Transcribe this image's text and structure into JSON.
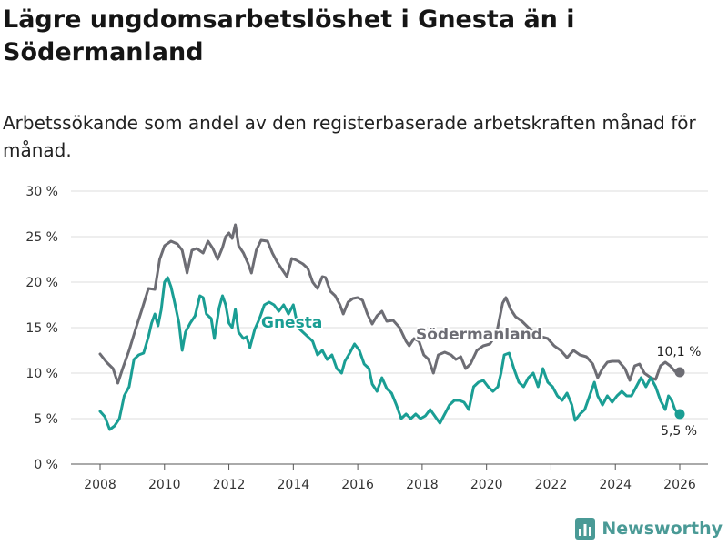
{
  "title": "Lägre ungdomsarbetslöshet i Gnesta än i Södermanland",
  "subtitle": "Arbetssökande som andel av den registerbaserade arbetskraften månad för månad.",
  "brand": "Newsworthy",
  "colors": {
    "gnesta": "#1a9e94",
    "sodermanland": "#6d6d74",
    "grid": "#dcdcdc",
    "axis": "#555555"
  },
  "chart_data": {
    "type": "line",
    "xlim": [
      2008,
      2026.4
    ],
    "ylim": [
      0,
      30
    ],
    "y_ticks": [
      0,
      5,
      10,
      15,
      20,
      25,
      30
    ],
    "y_tick_labels": [
      "0 %",
      "5 %",
      "10 %",
      "15 %",
      "20 %",
      "25 %",
      "30 %"
    ],
    "x_ticks": [
      2008,
      2010,
      2012,
      2014,
      2016,
      2018,
      2020,
      2022,
      2024,
      2026
    ],
    "x_tick_labels": [
      "2008",
      "2010",
      "2012",
      "2014",
      "2016",
      "2018",
      "2020",
      "2022",
      "2024",
      "2026"
    ],
    "series": [
      {
        "name": "Södermanland",
        "label": "Södermanland",
        "end_label": "10,1 %",
        "points": [
          [
            2008.0,
            12.1
          ],
          [
            2008.2,
            11.2
          ],
          [
            2008.4,
            10.5
          ],
          [
            2008.55,
            8.9
          ],
          [
            2008.7,
            10.5
          ],
          [
            2008.9,
            12.5
          ],
          [
            2009.1,
            14.8
          ],
          [
            2009.3,
            17.0
          ],
          [
            2009.5,
            19.3
          ],
          [
            2009.7,
            19.2
          ],
          [
            2009.85,
            22.5
          ],
          [
            2010.0,
            24.0
          ],
          [
            2010.2,
            24.5
          ],
          [
            2010.4,
            24.2
          ],
          [
            2010.55,
            23.5
          ],
          [
            2010.7,
            21.0
          ],
          [
            2010.85,
            23.5
          ],
          [
            2011.0,
            23.7
          ],
          [
            2011.2,
            23.2
          ],
          [
            2011.35,
            24.5
          ],
          [
            2011.5,
            23.7
          ],
          [
            2011.65,
            22.5
          ],
          [
            2011.8,
            23.8
          ],
          [
            2011.9,
            25.0
          ],
          [
            2012.0,
            25.4
          ],
          [
            2012.1,
            24.8
          ],
          [
            2012.2,
            26.3
          ],
          [
            2012.3,
            24.0
          ],
          [
            2012.45,
            23.2
          ],
          [
            2012.6,
            22.0
          ],
          [
            2012.7,
            21.0
          ],
          [
            2012.85,
            23.5
          ],
          [
            2013.0,
            24.6
          ],
          [
            2013.2,
            24.5
          ],
          [
            2013.35,
            23.2
          ],
          [
            2013.5,
            22.2
          ],
          [
            2013.65,
            21.4
          ],
          [
            2013.8,
            20.6
          ],
          [
            2013.95,
            22.6
          ],
          [
            2014.1,
            22.4
          ],
          [
            2014.3,
            22.0
          ],
          [
            2014.45,
            21.5
          ],
          [
            2014.6,
            20.0
          ],
          [
            2014.75,
            19.3
          ],
          [
            2014.9,
            20.6
          ],
          [
            2015.0,
            20.5
          ],
          [
            2015.15,
            19.0
          ],
          [
            2015.3,
            18.5
          ],
          [
            2015.45,
            17.5
          ],
          [
            2015.55,
            16.5
          ],
          [
            2015.7,
            17.8
          ],
          [
            2015.85,
            18.2
          ],
          [
            2016.0,
            18.3
          ],
          [
            2016.15,
            18.0
          ],
          [
            2016.3,
            16.5
          ],
          [
            2016.45,
            15.4
          ],
          [
            2016.6,
            16.3
          ],
          [
            2016.75,
            16.8
          ],
          [
            2016.9,
            15.7
          ],
          [
            2017.1,
            15.8
          ],
          [
            2017.3,
            15.0
          ],
          [
            2017.5,
            13.5
          ],
          [
            2017.6,
            13.0
          ],
          [
            2017.75,
            13.8
          ],
          [
            2017.9,
            13.5
          ],
          [
            2018.05,
            12.0
          ],
          [
            2018.2,
            11.5
          ],
          [
            2018.35,
            10.0
          ],
          [
            2018.5,
            12.0
          ],
          [
            2018.7,
            12.3
          ],
          [
            2018.9,
            12.0
          ],
          [
            2019.05,
            11.5
          ],
          [
            2019.2,
            11.8
          ],
          [
            2019.35,
            10.5
          ],
          [
            2019.5,
            11.0
          ],
          [
            2019.7,
            12.5
          ],
          [
            2019.9,
            13.0
          ],
          [
            2020.1,
            13.2
          ],
          [
            2020.3,
            14.2
          ],
          [
            2020.5,
            17.7
          ],
          [
            2020.6,
            18.3
          ],
          [
            2020.75,
            17.0
          ],
          [
            2020.9,
            16.2
          ],
          [
            2021.1,
            15.7
          ],
          [
            2021.3,
            15.0
          ],
          [
            2021.5,
            14.5
          ],
          [
            2021.7,
            14.0
          ],
          [
            2021.9,
            13.8
          ],
          [
            2022.1,
            13.0
          ],
          [
            2022.3,
            12.5
          ],
          [
            2022.5,
            11.7
          ],
          [
            2022.7,
            12.5
          ],
          [
            2022.9,
            12.0
          ],
          [
            2023.1,
            11.8
          ],
          [
            2023.3,
            11.0
          ],
          [
            2023.45,
            9.5
          ],
          [
            2023.6,
            10.5
          ],
          [
            2023.75,
            11.2
          ],
          [
            2023.9,
            11.3
          ],
          [
            2024.1,
            11.3
          ],
          [
            2024.3,
            10.5
          ],
          [
            2024.45,
            9.2
          ],
          [
            2024.6,
            10.8
          ],
          [
            2024.75,
            11.0
          ],
          [
            2024.9,
            10.0
          ],
          [
            2025.1,
            9.5
          ],
          [
            2025.25,
            9.3
          ],
          [
            2025.4,
            10.8
          ],
          [
            2025.55,
            11.2
          ],
          [
            2025.7,
            10.8
          ],
          [
            2025.85,
            10.2
          ],
          [
            2026.0,
            10.1
          ]
        ]
      },
      {
        "name": "Gnesta",
        "label": "Gnesta",
        "end_label": "5,5 %",
        "points": [
          [
            2008.0,
            5.8
          ],
          [
            2008.15,
            5.2
          ],
          [
            2008.3,
            3.8
          ],
          [
            2008.45,
            4.2
          ],
          [
            2008.6,
            5.0
          ],
          [
            2008.75,
            7.5
          ],
          [
            2008.9,
            8.5
          ],
          [
            2009.05,
            11.5
          ],
          [
            2009.2,
            12.0
          ],
          [
            2009.35,
            12.2
          ],
          [
            2009.5,
            14.0
          ],
          [
            2009.6,
            15.5
          ],
          [
            2009.7,
            16.5
          ],
          [
            2009.8,
            15.2
          ],
          [
            2009.9,
            17.0
          ],
          [
            2010.0,
            20.0
          ],
          [
            2010.1,
            20.5
          ],
          [
            2010.2,
            19.5
          ],
          [
            2010.3,
            18.0
          ],
          [
            2010.45,
            15.5
          ],
          [
            2010.55,
            12.5
          ],
          [
            2010.65,
            14.5
          ],
          [
            2010.8,
            15.5
          ],
          [
            2010.95,
            16.3
          ],
          [
            2011.1,
            18.5
          ],
          [
            2011.2,
            18.3
          ],
          [
            2011.3,
            16.5
          ],
          [
            2011.45,
            16.0
          ],
          [
            2011.55,
            13.8
          ],
          [
            2011.7,
            17.2
          ],
          [
            2011.8,
            18.5
          ],
          [
            2011.9,
            17.5
          ],
          [
            2012.0,
            15.5
          ],
          [
            2012.1,
            15.0
          ],
          [
            2012.2,
            17.0
          ],
          [
            2012.3,
            14.5
          ],
          [
            2012.45,
            13.8
          ],
          [
            2012.55,
            14.0
          ],
          [
            2012.65,
            12.8
          ],
          [
            2012.8,
            14.8
          ],
          [
            2012.95,
            16.0
          ],
          [
            2013.1,
            17.5
          ],
          [
            2013.25,
            17.8
          ],
          [
            2013.4,
            17.5
          ],
          [
            2013.55,
            16.8
          ],
          [
            2013.7,
            17.5
          ],
          [
            2013.85,
            16.5
          ],
          [
            2014.0,
            17.5
          ],
          [
            2014.15,
            15.0
          ],
          [
            2014.3,
            14.5
          ],
          [
            2014.45,
            14.0
          ],
          [
            2014.6,
            13.5
          ],
          [
            2014.75,
            12.0
          ],
          [
            2014.9,
            12.5
          ],
          [
            2015.05,
            11.5
          ],
          [
            2015.2,
            12.0
          ],
          [
            2015.35,
            10.5
          ],
          [
            2015.5,
            10.0
          ],
          [
            2015.6,
            11.3
          ],
          [
            2015.75,
            12.2
          ],
          [
            2015.9,
            13.2
          ],
          [
            2016.05,
            12.5
          ],
          [
            2016.2,
            11.0
          ],
          [
            2016.35,
            10.5
          ],
          [
            2016.45,
            8.8
          ],
          [
            2016.6,
            8.0
          ],
          [
            2016.75,
            9.5
          ],
          [
            2016.9,
            8.3
          ],
          [
            2017.05,
            7.8
          ],
          [
            2017.2,
            6.5
          ],
          [
            2017.35,
            5.0
          ],
          [
            2017.5,
            5.5
          ],
          [
            2017.65,
            5.0
          ],
          [
            2017.8,
            5.5
          ],
          [
            2017.95,
            5.0
          ],
          [
            2018.1,
            5.3
          ],
          [
            2018.25,
            6.0
          ],
          [
            2018.35,
            5.5
          ],
          [
            2018.45,
            5.0
          ],
          [
            2018.55,
            4.5
          ],
          [
            2018.7,
            5.5
          ],
          [
            2018.85,
            6.5
          ],
          [
            2019.0,
            7.0
          ],
          [
            2019.15,
            7.0
          ],
          [
            2019.3,
            6.8
          ],
          [
            2019.45,
            6.0
          ],
          [
            2019.6,
            8.5
          ],
          [
            2019.75,
            9.0
          ],
          [
            2019.9,
            9.2
          ],
          [
            2020.05,
            8.5
          ],
          [
            2020.2,
            8.0
          ],
          [
            2020.35,
            8.5
          ],
          [
            2020.45,
            10.0
          ],
          [
            2020.55,
            12.0
          ],
          [
            2020.7,
            12.2
          ],
          [
            2020.85,
            10.5
          ],
          [
            2021.0,
            9.0
          ],
          [
            2021.15,
            8.5
          ],
          [
            2021.3,
            9.5
          ],
          [
            2021.45,
            10.0
          ],
          [
            2021.6,
            8.5
          ],
          [
            2021.75,
            10.5
          ],
          [
            2021.9,
            9.0
          ],
          [
            2022.05,
            8.5
          ],
          [
            2022.2,
            7.5
          ],
          [
            2022.35,
            7.0
          ],
          [
            2022.5,
            7.8
          ],
          [
            2022.65,
            6.5
          ],
          [
            2022.75,
            4.8
          ],
          [
            2022.9,
            5.5
          ],
          [
            2023.05,
            6.0
          ],
          [
            2023.2,
            7.5
          ],
          [
            2023.35,
            9.0
          ],
          [
            2023.45,
            7.5
          ],
          [
            2023.6,
            6.5
          ],
          [
            2023.75,
            7.5
          ],
          [
            2023.9,
            6.8
          ],
          [
            2024.05,
            7.5
          ],
          [
            2024.2,
            8.0
          ],
          [
            2024.35,
            7.5
          ],
          [
            2024.5,
            7.5
          ],
          [
            2024.65,
            8.5
          ],
          [
            2024.8,
            9.5
          ],
          [
            2024.95,
            8.5
          ],
          [
            2025.1,
            9.5
          ],
          [
            2025.25,
            8.5
          ],
          [
            2025.4,
            7.0
          ],
          [
            2025.55,
            6.0
          ],
          [
            2025.65,
            7.5
          ],
          [
            2025.75,
            7.0
          ],
          [
            2025.85,
            6.0
          ],
          [
            2026.0,
            5.5
          ]
        ]
      }
    ]
  }
}
